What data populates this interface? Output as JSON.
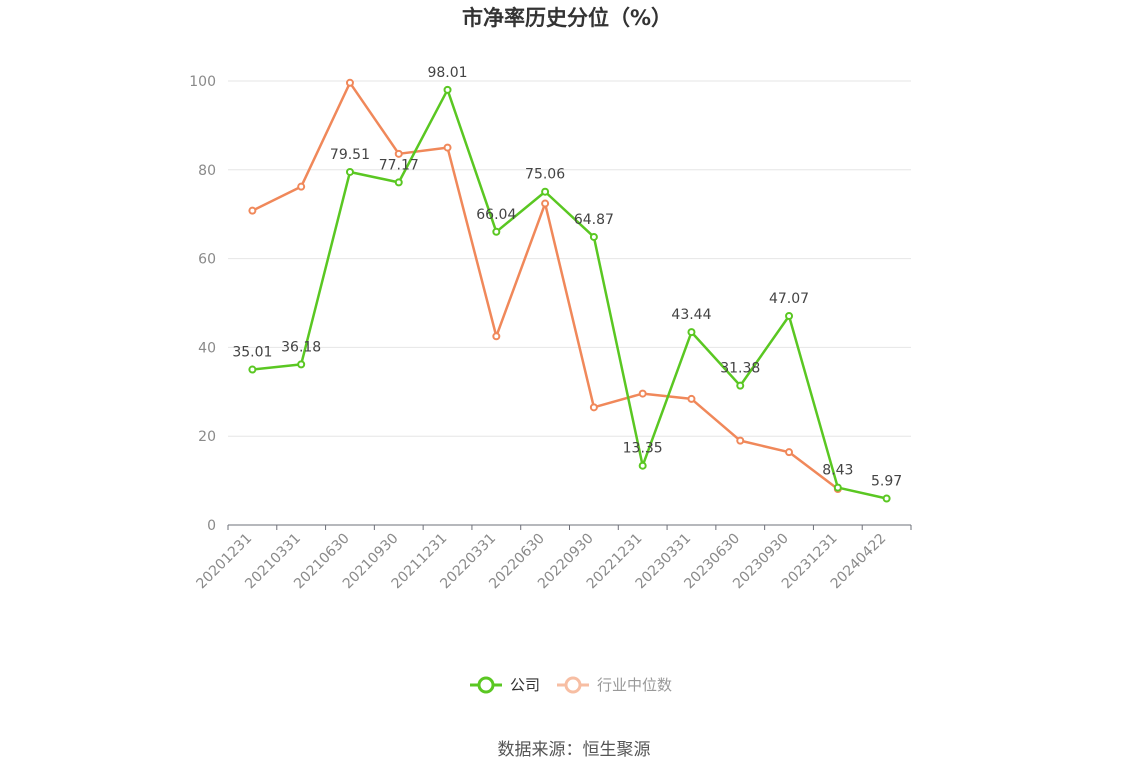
{
  "chart_data": {
    "type": "line",
    "title": "市净率历史分位（%）",
    "categories": [
      "20201231",
      "20210331",
      "20210630",
      "20210930",
      "20211231",
      "20220331",
      "20220630",
      "20220930",
      "20221231",
      "20230331",
      "20230630",
      "20230930",
      "20231231",
      "20240422"
    ],
    "ylim": [
      0,
      100
    ],
    "yticks": [
      0,
      20,
      40,
      60,
      80,
      100
    ],
    "grid": true,
    "legend_position": "bottom",
    "series": [
      {
        "name": "公司",
        "color": "#5ac722",
        "values": [
          35.01,
          36.18,
          79.51,
          77.17,
          98.01,
          66.04,
          75.06,
          64.87,
          13.35,
          43.44,
          31.38,
          47.07,
          8.43,
          5.97
        ],
        "labels": [
          "35.01",
          "36.18",
          "79.51",
          "77.17",
          "98.01",
          "66.04",
          "75.06",
          "64.87",
          "13.35",
          "43.44",
          "31.38",
          "47.07",
          "8.43",
          "5.97"
        ]
      },
      {
        "name": "行业中位数",
        "color": "#f0885a",
        "values": [
          70.8,
          76.2,
          99.6,
          83.6,
          85.0,
          42.5,
          72.4,
          26.5,
          29.6,
          28.4,
          19.0,
          16.4,
          8.1,
          null
        ]
      }
    ]
  },
  "source": "数据来源：恒生聚源"
}
